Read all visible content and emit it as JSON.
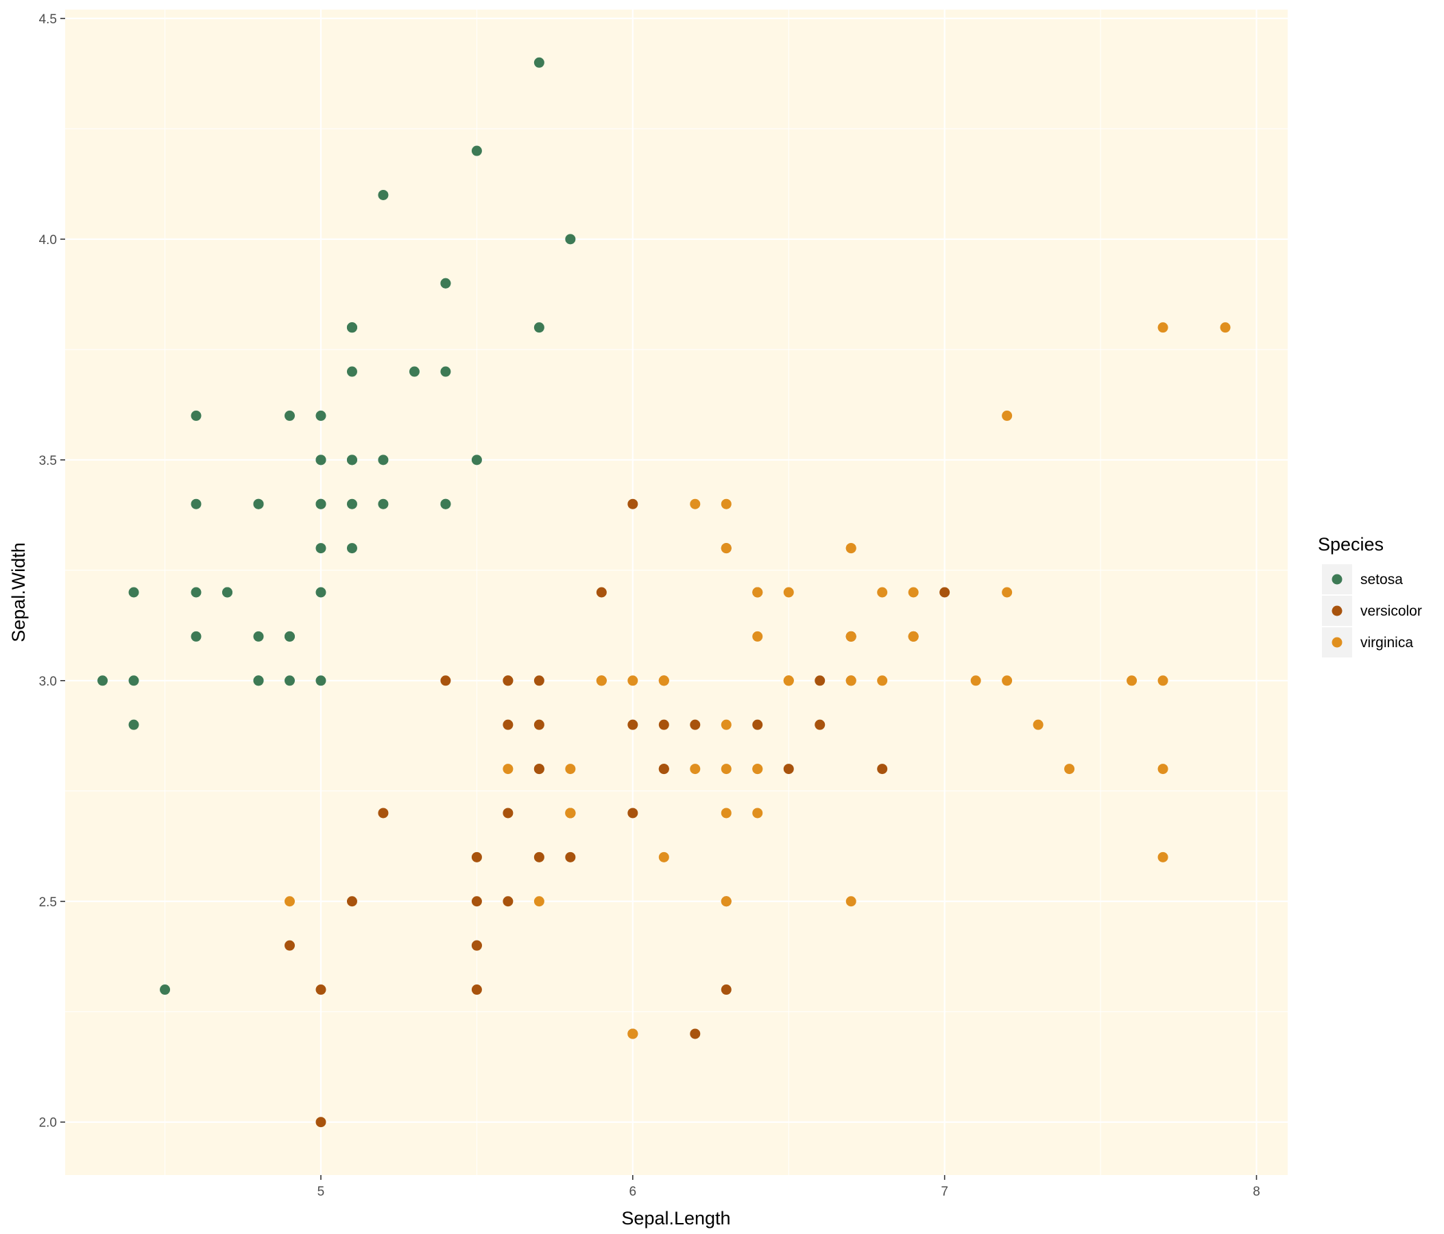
{
  "chart_data": {
    "type": "scatter",
    "xlabel": "Sepal.Length",
    "ylabel": "Sepal.Width",
    "xlim": [
      4.18,
      8.1
    ],
    "ylim": [
      1.88,
      4.52
    ],
    "x_ticks": [
      5,
      6,
      7,
      8
    ],
    "y_ticks": [
      2.0,
      2.5,
      3.0,
      3.5,
      4.0,
      4.5
    ],
    "x_tick_labels": [
      "5",
      "6",
      "7",
      "8"
    ],
    "y_tick_labels": [
      "2.0",
      "2.5",
      "3.0",
      "3.5",
      "4.0",
      "4.5"
    ],
    "grid": true,
    "panel_background": "#fff8e6",
    "legend": {
      "title": "Species",
      "position": "right"
    },
    "series": [
      {
        "name": "setosa",
        "color": "#3d7a55",
        "points": [
          [
            5.1,
            3.5
          ],
          [
            4.9,
            3.0
          ],
          [
            4.7,
            3.2
          ],
          [
            4.6,
            3.1
          ],
          [
            5.0,
            3.6
          ],
          [
            5.4,
            3.9
          ],
          [
            4.6,
            3.4
          ],
          [
            5.0,
            3.4
          ],
          [
            4.4,
            2.9
          ],
          [
            4.9,
            3.1
          ],
          [
            5.4,
            3.7
          ],
          [
            4.8,
            3.4
          ],
          [
            4.8,
            3.0
          ],
          [
            4.3,
            3.0
          ],
          [
            5.8,
            4.0
          ],
          [
            5.7,
            4.4
          ],
          [
            5.4,
            3.9
          ],
          [
            5.1,
            3.5
          ],
          [
            5.7,
            3.8
          ],
          [
            5.1,
            3.8
          ],
          [
            5.4,
            3.4
          ],
          [
            5.1,
            3.7
          ],
          [
            4.6,
            3.6
          ],
          [
            5.1,
            3.3
          ],
          [
            4.8,
            3.4
          ],
          [
            5.0,
            3.0
          ],
          [
            5.0,
            3.4
          ],
          [
            5.2,
            3.5
          ],
          [
            5.2,
            3.4
          ],
          [
            4.7,
            3.2
          ],
          [
            4.8,
            3.1
          ],
          [
            5.4,
            3.4
          ],
          [
            5.2,
            4.1
          ],
          [
            5.5,
            4.2
          ],
          [
            4.9,
            3.1
          ],
          [
            5.0,
            3.2
          ],
          [
            5.5,
            3.5
          ],
          [
            4.9,
            3.6
          ],
          [
            4.4,
            3.0
          ],
          [
            5.1,
            3.4
          ],
          [
            5.0,
            3.5
          ],
          [
            4.5,
            2.3
          ],
          [
            4.4,
            3.2
          ],
          [
            5.0,
            3.5
          ],
          [
            5.1,
            3.8
          ],
          [
            4.8,
            3.0
          ],
          [
            5.1,
            3.8
          ],
          [
            4.6,
            3.2
          ],
          [
            5.3,
            3.7
          ],
          [
            5.0,
            3.3
          ]
        ]
      },
      {
        "name": "versicolor",
        "color": "#a8530d",
        "points": [
          [
            7.0,
            3.2
          ],
          [
            6.4,
            3.2
          ],
          [
            6.9,
            3.1
          ],
          [
            5.5,
            2.3
          ],
          [
            6.5,
            2.8
          ],
          [
            5.7,
            2.8
          ],
          [
            6.3,
            3.3
          ],
          [
            4.9,
            2.4
          ],
          [
            6.6,
            2.9
          ],
          [
            5.2,
            2.7
          ],
          [
            5.0,
            2.0
          ],
          [
            5.9,
            3.0
          ],
          [
            6.0,
            2.2
          ],
          [
            6.1,
            2.9
          ],
          [
            5.6,
            2.9
          ],
          [
            6.7,
            3.1
          ],
          [
            5.6,
            3.0
          ],
          [
            5.8,
            2.7
          ],
          [
            6.2,
            2.2
          ],
          [
            5.6,
            2.5
          ],
          [
            5.9,
            3.2
          ],
          [
            6.1,
            2.8
          ],
          [
            6.3,
            2.5
          ],
          [
            6.1,
            2.8
          ],
          [
            6.4,
            2.9
          ],
          [
            6.6,
            3.0
          ],
          [
            6.8,
            2.8
          ],
          [
            6.7,
            3.0
          ],
          [
            6.0,
            2.9
          ],
          [
            5.7,
            2.6
          ],
          [
            5.5,
            2.4
          ],
          [
            5.5,
            2.4
          ],
          [
            5.8,
            2.7
          ],
          [
            6.0,
            2.7
          ],
          [
            5.4,
            3.0
          ],
          [
            6.0,
            3.4
          ],
          [
            6.7,
            3.1
          ],
          [
            6.3,
            2.3
          ],
          [
            5.6,
            3.0
          ],
          [
            5.5,
            2.5
          ],
          [
            5.5,
            2.6
          ],
          [
            6.1,
            3.0
          ],
          [
            5.8,
            2.6
          ],
          [
            5.0,
            2.3
          ],
          [
            5.6,
            2.7
          ],
          [
            5.7,
            3.0
          ],
          [
            5.7,
            2.9
          ],
          [
            6.2,
            2.9
          ],
          [
            5.1,
            2.5
          ],
          [
            5.7,
            2.8
          ]
        ]
      },
      {
        "name": "virginica",
        "color": "#e08f1e",
        "points": [
          [
            6.3,
            3.3
          ],
          [
            5.8,
            2.7
          ],
          [
            7.1,
            3.0
          ],
          [
            6.3,
            2.9
          ],
          [
            6.5,
            3.0
          ],
          [
            7.6,
            3.0
          ],
          [
            4.9,
            2.5
          ],
          [
            7.3,
            2.9
          ],
          [
            6.7,
            2.5
          ],
          [
            7.2,
            3.6
          ],
          [
            6.5,
            3.2
          ],
          [
            6.4,
            2.7
          ],
          [
            6.8,
            3.0
          ],
          [
            5.7,
            2.5
          ],
          [
            5.8,
            2.8
          ],
          [
            6.4,
            3.2
          ],
          [
            6.5,
            3.0
          ],
          [
            7.7,
            3.8
          ],
          [
            7.7,
            2.6
          ],
          [
            6.0,
            2.2
          ],
          [
            6.9,
            3.2
          ],
          [
            5.6,
            2.8
          ],
          [
            7.7,
            2.8
          ],
          [
            6.3,
            2.7
          ],
          [
            6.7,
            3.3
          ],
          [
            7.2,
            3.2
          ],
          [
            6.2,
            2.8
          ],
          [
            6.1,
            3.0
          ],
          [
            6.4,
            2.8
          ],
          [
            7.2,
            3.0
          ],
          [
            7.4,
            2.8
          ],
          [
            7.9,
            3.8
          ],
          [
            6.4,
            2.8
          ],
          [
            6.3,
            2.8
          ],
          [
            6.1,
            2.6
          ],
          [
            7.7,
            3.0
          ],
          [
            6.3,
            3.4
          ],
          [
            6.4,
            3.1
          ],
          [
            6.0,
            3.0
          ],
          [
            6.9,
            3.1
          ],
          [
            6.7,
            3.1
          ],
          [
            6.9,
            3.1
          ],
          [
            5.8,
            2.7
          ],
          [
            6.8,
            3.2
          ],
          [
            6.7,
            3.3
          ],
          [
            6.7,
            3.0
          ],
          [
            6.3,
            2.5
          ],
          [
            6.5,
            3.0
          ],
          [
            6.2,
            3.4
          ],
          [
            5.9,
            3.0
          ]
        ]
      }
    ]
  }
}
